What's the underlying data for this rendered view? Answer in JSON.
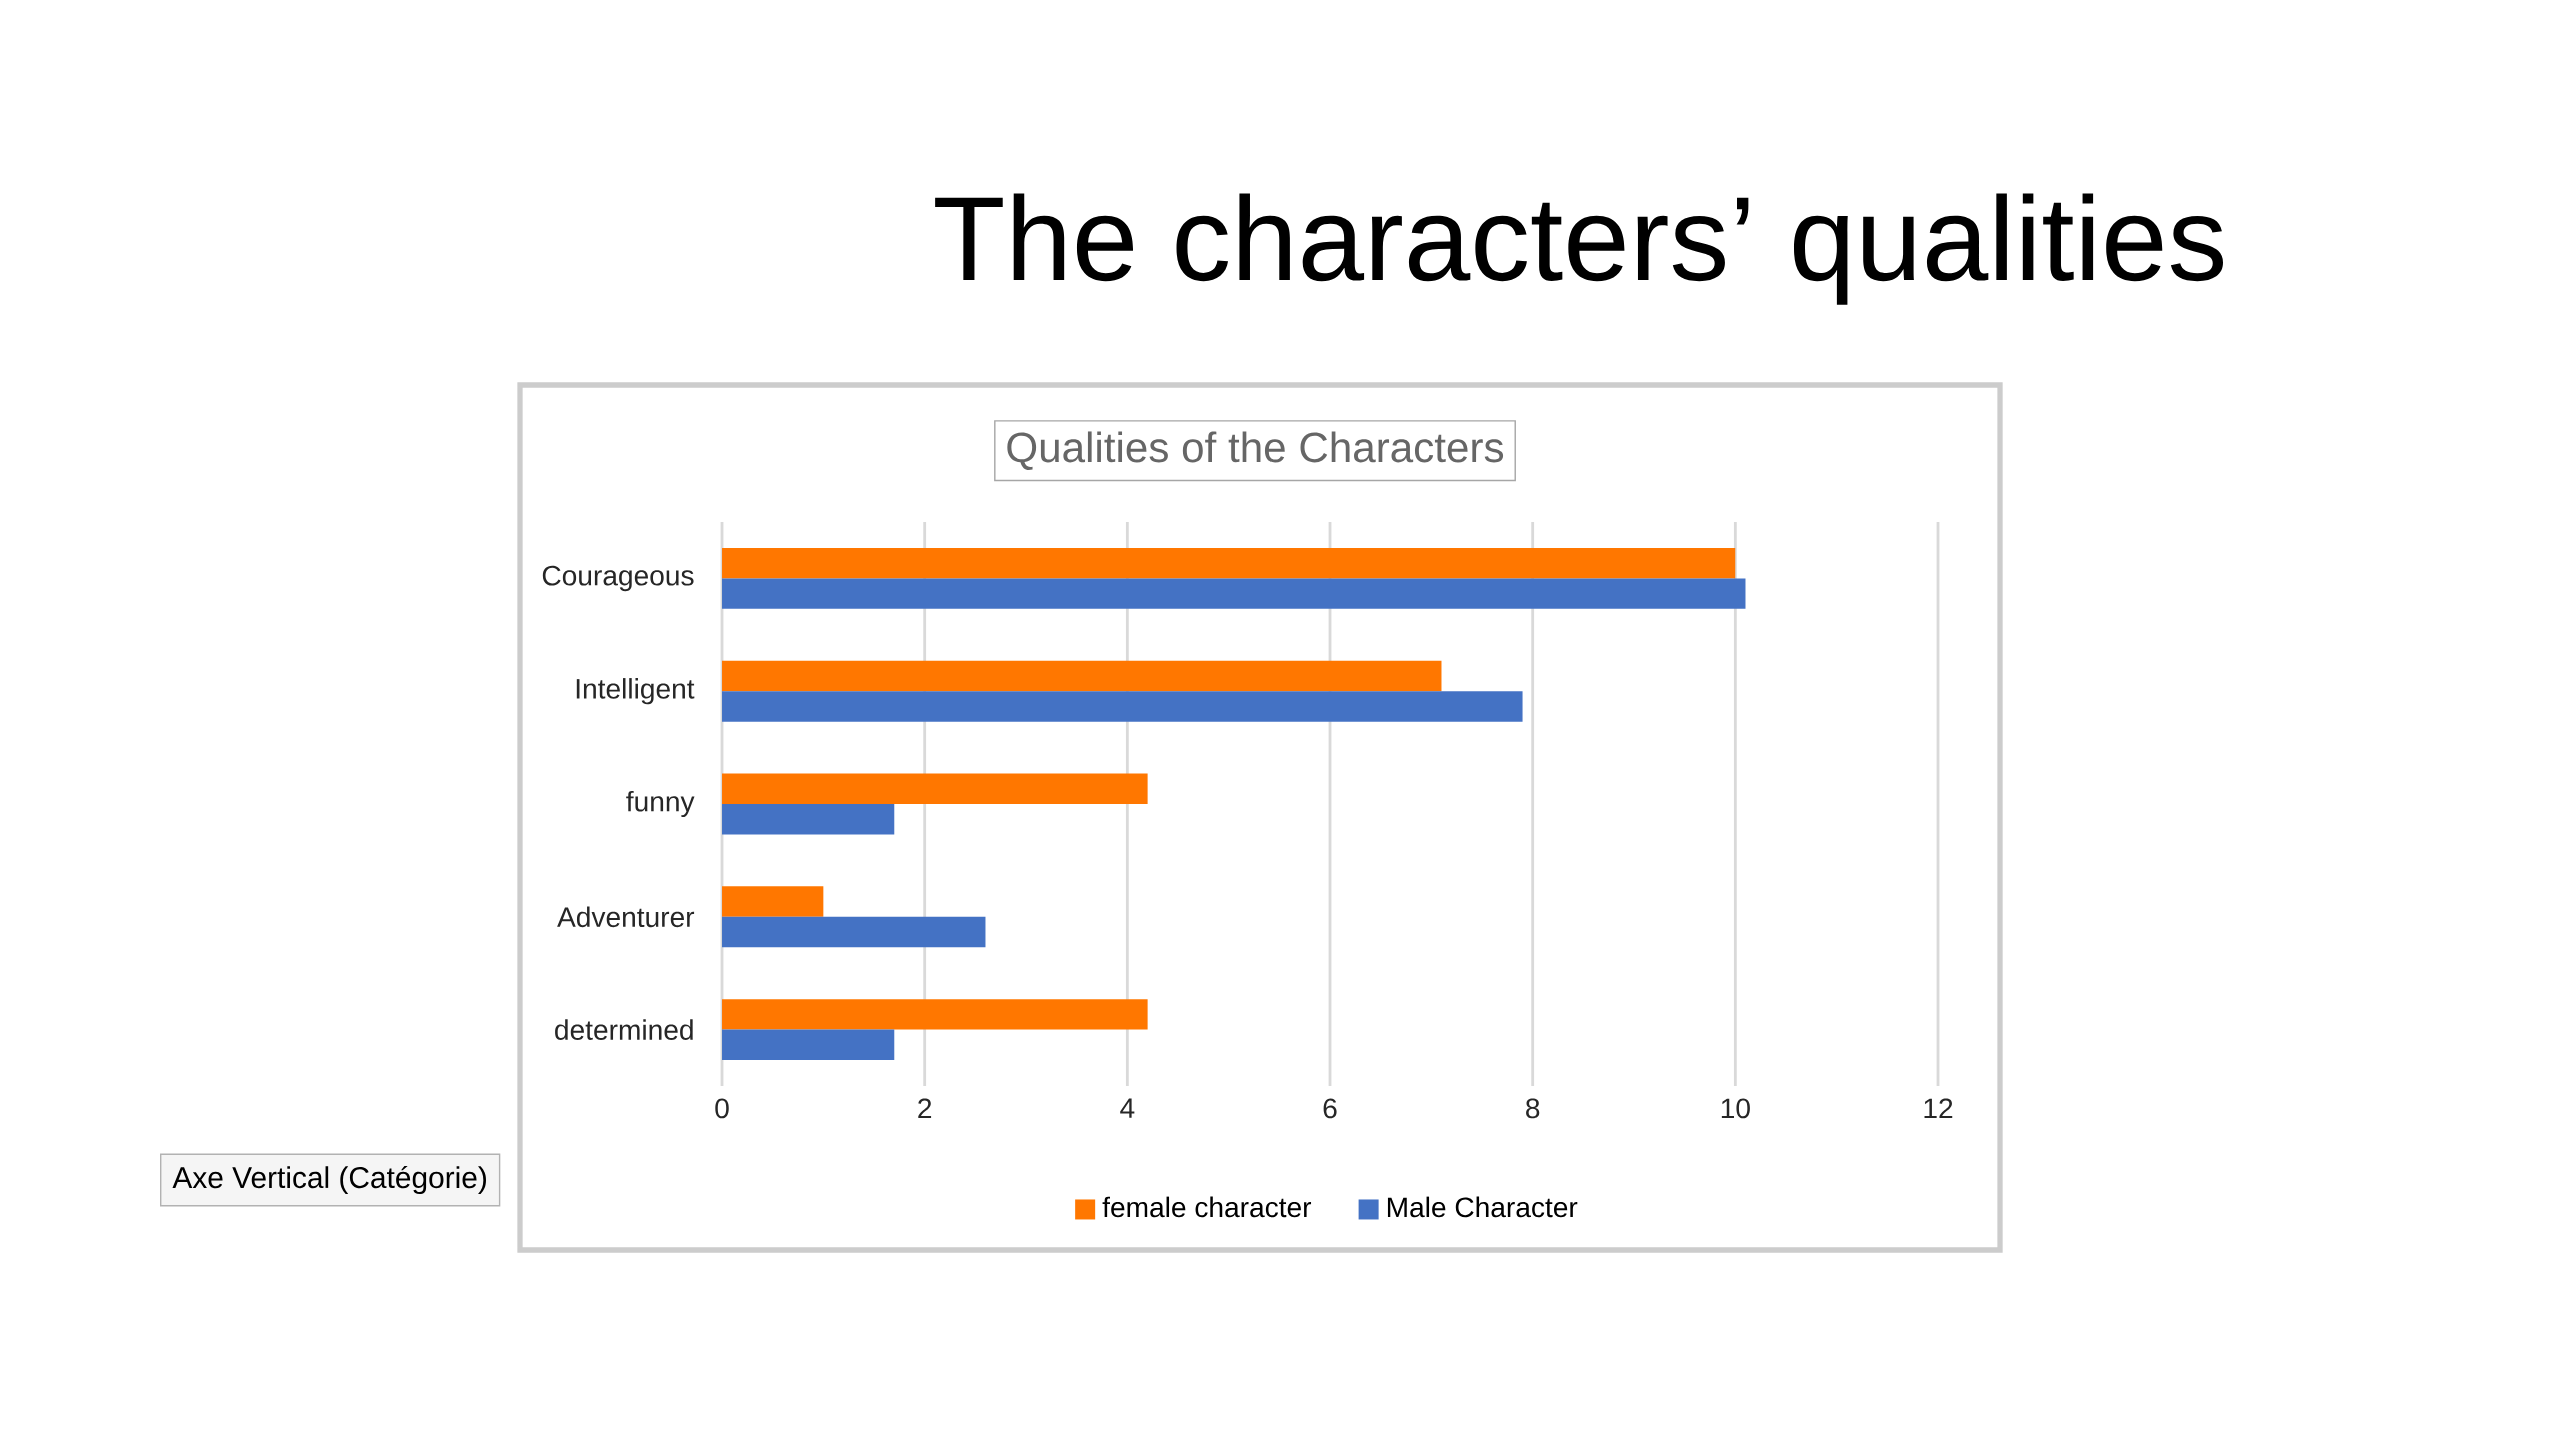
{
  "chart_data": {
    "type": "bar",
    "orientation": "horizontal",
    "title": "The characters’ qualities",
    "subtitle": "Qualities of the Characters",
    "categories": [
      "Courageous",
      "Intelligent",
      "funny",
      "Adventurer",
      "determined"
    ],
    "series": [
      {
        "name": "female character",
        "color": "#ff7700",
        "values": [
          10.0,
          7.1,
          4.2,
          1.0,
          4.2
        ]
      },
      {
        "name": "Male Character",
        "color": "#4472c4",
        "values": [
          10.1,
          7.9,
          1.7,
          2.6,
          1.7
        ]
      }
    ],
    "xlim": [
      0,
      12
    ],
    "xticks": [
      0,
      2,
      4,
      6,
      8,
      10,
      12
    ],
    "grid": "x",
    "legend": "bottom",
    "annotations": [
      "Axe Vertical (Catégorie)"
    ]
  }
}
